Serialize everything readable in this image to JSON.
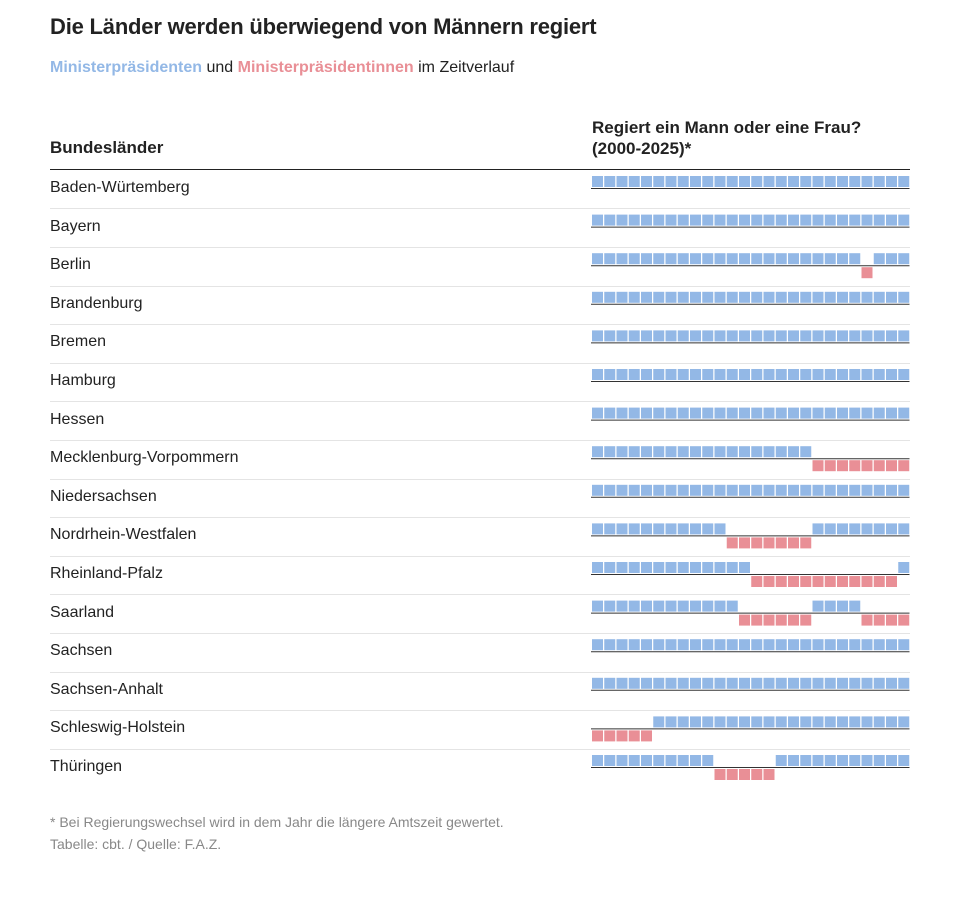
{
  "title": "Die Länder werden überwiegend von Männern regiert",
  "subtitle": {
    "male_label": "Ministerpräsidenten",
    "connector": "und",
    "female_label": "Ministerpräsidentinnen",
    "suffix": "im Zeitverlauf"
  },
  "columns": {
    "left": "Bundesländer",
    "right_line1": "Regiert ein Mann oder eine Frau?",
    "right_line2": "(2000-2025)*"
  },
  "footnote": "* Bei Regierungswechsel wird in dem Jahr die längere Amtszeit gewertet.",
  "source": "Tabelle: cbt. / Quelle: F.A.Z.",
  "colors": {
    "male": "#93b8e6",
    "female": "#e98f96",
    "axis": "#333333"
  },
  "chart_data": {
    "type": "table",
    "x": [
      2000,
      2001,
      2002,
      2003,
      2004,
      2005,
      2006,
      2007,
      2008,
      2009,
      2010,
      2011,
      2012,
      2013,
      2014,
      2015,
      2016,
      2017,
      2018,
      2019,
      2020,
      2021,
      2022,
      2023,
      2024,
      2025
    ],
    "legend": {
      "male": "Ministerpräsidenten",
      "female": "Ministerpräsidentinnen"
    },
    "rows": [
      {
        "name": "Baden-Würtemberg",
        "values": "MMMMMMMMMMMMMMMMMMMMMMMMMM"
      },
      {
        "name": "Bayern",
        "values": "MMMMMMMMMMMMMMMMMMMMMMMMMM"
      },
      {
        "name": "Berlin",
        "values": "MMMMMMMMMMMMMMMMMMMMMMFMMM"
      },
      {
        "name": "Brandenburg",
        "values": "MMMMMMMMMMMMMMMMMMMMMMMMMM"
      },
      {
        "name": "Bremen",
        "values": "MMMMMMMMMMMMMMMMMMMMMMMMMM"
      },
      {
        "name": "Hamburg",
        "values": "MMMMMMMMMMMMMMMMMMMMMMMMMM"
      },
      {
        "name": "Hessen",
        "values": "MMMMMMMMMMMMMMMMMMMMMMMMMM"
      },
      {
        "name": "Mecklenburg-Vorpommern",
        "values": "MMMMMMMMMMMMMMMMMMFFFFFFFF"
      },
      {
        "name": "Niedersachsen",
        "values": "MMMMMMMMMMMMMMMMMMMMMMMMMM"
      },
      {
        "name": "Nordrhein-Westfalen",
        "values": "MMMMMMMMMMMFFFFFFFMMMMMMMM"
      },
      {
        "name": "Rheinland-Pfalz",
        "values": "MMMMMMMMMMMMMFFFFFFFFFFFFM"
      },
      {
        "name": "Saarland",
        "values": "MMMMMMMMMMMMFFFFFFMMMMFFFF"
      },
      {
        "name": "Sachsen",
        "values": "MMMMMMMMMMMMMMMMMMMMMMMMMM"
      },
      {
        "name": "Sachsen-Anhalt",
        "values": "MMMMMMMMMMMMMMMMMMMMMMMMMM"
      },
      {
        "name": "Schleswig-Holstein",
        "values": "FFFFFMMMMMMMMMMMMMMMMMMMMM"
      },
      {
        "name": "Thüringen",
        "values": "MMMMMMMMMMFFFFFMMMMMMMMMMM"
      }
    ]
  }
}
